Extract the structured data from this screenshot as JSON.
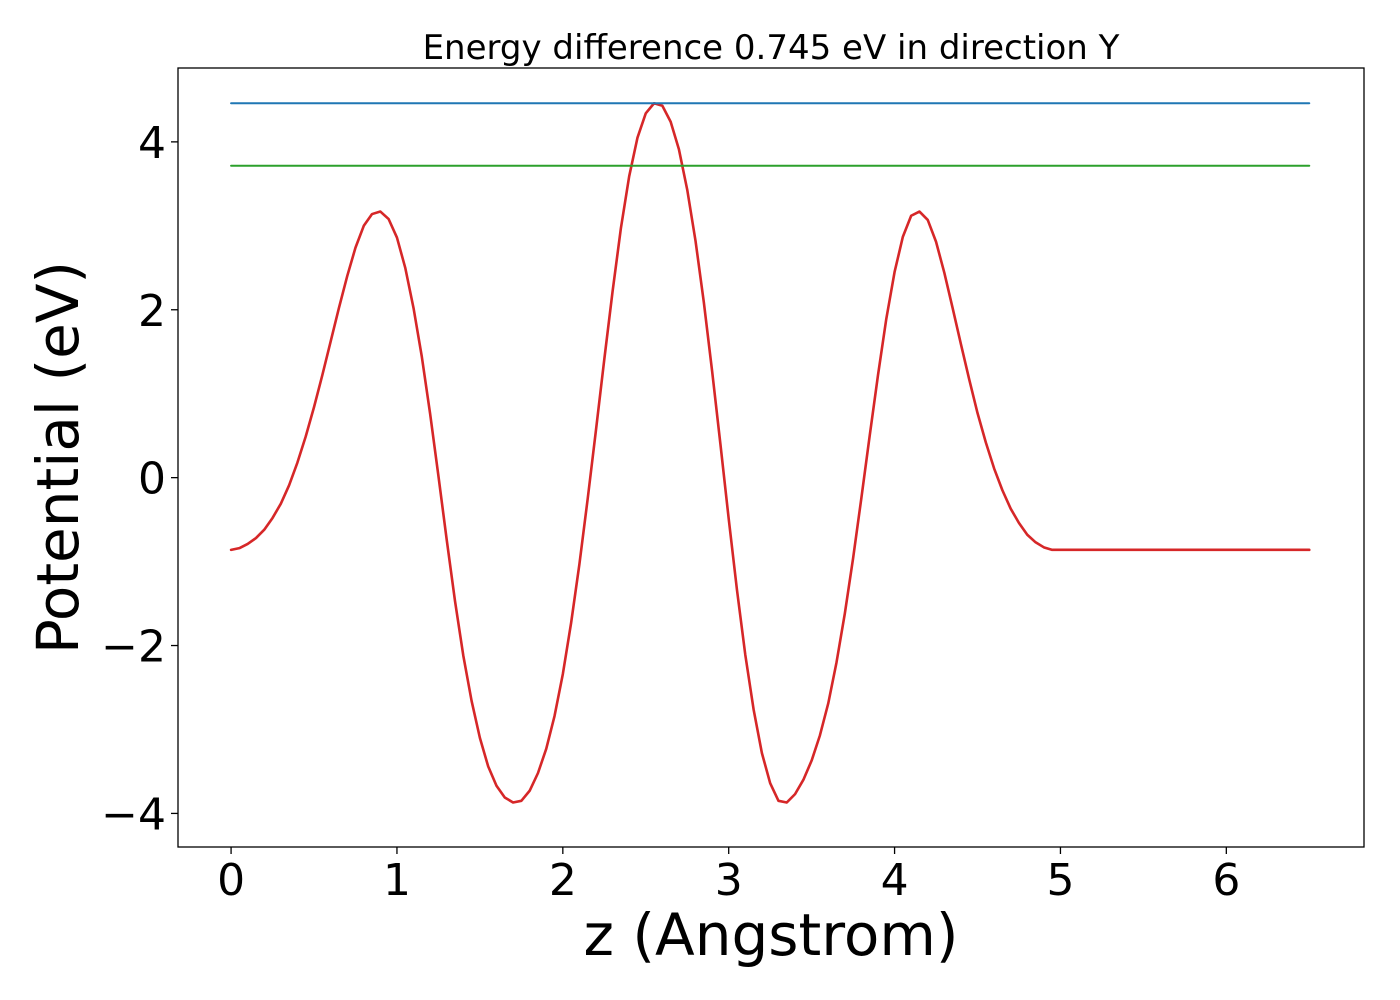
{
  "chart_data": {
    "type": "line",
    "title": "Energy difference 0.745 eV in direction Y",
    "xlabel": "z (Angstrom)",
    "ylabel": "Potential (eV)",
    "xlim": [
      -0.32,
      6.83
    ],
    "ylim": [
      -4.4,
      4.88
    ],
    "x_ticks": [
      0,
      1,
      2,
      3,
      4,
      5,
      6
    ],
    "x_tick_labels": [
      "0",
      "1",
      "2",
      "3",
      "4",
      "5",
      "6"
    ],
    "y_ticks": [
      -4,
      -2,
      0,
      2,
      4
    ],
    "y_tick_labels": [
      "−4",
      "−2",
      "0",
      "2",
      "4"
    ],
    "grid": false,
    "legend": "none",
    "series": [
      {
        "color": "#d62728",
        "kind": "curve",
        "x": [
          0,
          0.05,
          0.1,
          0.15,
          0.2,
          0.25,
          0.3,
          0.35,
          0.4,
          0.45,
          0.5,
          0.55,
          0.6,
          0.65,
          0.7,
          0.75,
          0.8,
          0.85,
          0.9,
          0.95,
          1.0,
          1.05,
          1.1,
          1.15,
          1.2,
          1.25,
          1.3,
          1.35,
          1.4,
          1.45,
          1.5,
          1.55,
          1.6,
          1.65,
          1.7,
          1.75,
          1.8,
          1.85,
          1.9,
          1.95,
          2.0,
          2.05,
          2.1,
          2.15,
          2.2,
          2.25,
          2.3,
          2.35,
          2.4,
          2.45,
          2.5,
          2.55,
          2.6,
          2.65,
          2.7,
          2.75,
          2.8,
          2.85,
          2.9,
          2.95,
          3.0,
          3.05,
          3.1,
          3.15,
          3.2,
          3.25,
          3.3,
          3.35,
          3.4,
          3.45,
          3.5,
          3.55,
          3.6,
          3.65,
          3.7,
          3.75,
          3.8,
          3.85,
          3.9,
          3.95,
          4.0,
          4.05,
          4.1,
          4.15,
          4.2,
          4.25,
          4.3,
          4.35,
          4.4,
          4.45,
          4.5,
          4.55,
          4.6,
          4.65,
          4.7,
          4.75,
          4.8,
          4.85,
          4.9,
          4.95,
          5.0,
          5.05,
          5.1,
          5.15,
          5.2,
          5.25,
          5.3,
          5.35,
          5.4,
          5.45,
          5.5,
          5.55,
          5.6,
          5.65,
          5.7,
          5.75,
          5.8,
          5.85,
          5.9,
          5.95,
          6.0,
          6.05,
          6.1,
          6.15,
          6.2,
          6.25,
          6.3,
          6.35,
          6.4,
          6.45,
          6.5
        ],
        "y": [
          -0.86,
          -0.84,
          -0.79,
          -0.72,
          -0.62,
          -0.48,
          -0.31,
          -0.09,
          0.18,
          0.49,
          0.84,
          1.22,
          1.62,
          2.02,
          2.4,
          2.74,
          3.0,
          3.14,
          3.17,
          3.08,
          2.86,
          2.5,
          2.02,
          1.44,
          0.76,
          0.02,
          -0.74,
          -1.47,
          -2.12,
          -2.66,
          -3.1,
          -3.44,
          -3.67,
          -3.81,
          -3.87,
          -3.85,
          -3.73,
          -3.52,
          -3.23,
          -2.84,
          -2.34,
          -1.73,
          -1.03,
          -0.25,
          0.57,
          1.41,
          2.22,
          2.97,
          3.59,
          4.05,
          4.34,
          4.46,
          4.43,
          4.24,
          3.91,
          3.43,
          2.82,
          2.09,
          1.27,
          0.4,
          -0.49,
          -1.34,
          -2.11,
          -2.76,
          -3.28,
          -3.64,
          -3.85,
          -3.87,
          -3.77,
          -3.6,
          -3.37,
          -3.07,
          -2.69,
          -2.2,
          -1.62,
          -0.96,
          -0.24,
          0.5,
          1.22,
          1.89,
          2.45,
          2.87,
          3.12,
          3.17,
          3.07,
          2.81,
          2.44,
          2.02,
          1.59,
          1.17,
          0.77,
          0.42,
          0.11,
          -0.15,
          -0.37,
          -0.54,
          -0.68,
          -0.77,
          -0.83,
          -0.86,
          -0.86,
          -0.86,
          -0.86,
          -0.86,
          -0.86,
          -0.86,
          -0.86,
          -0.86,
          -0.86,
          -0.86,
          -0.86,
          -0.86,
          -0.86,
          -0.86,
          -0.86,
          -0.86,
          -0.86,
          -0.86,
          -0.86,
          -0.86,
          -0.86,
          -0.86,
          -0.86,
          -0.86,
          -0.86,
          -0.86,
          -0.86,
          -0.86,
          -0.86,
          -0.86,
          -0.86
        ]
      },
      {
        "color": "#1f77b4",
        "kind": "hline",
        "x": [
          0,
          6.5
        ],
        "y": [
          4.46,
          4.46
        ]
      },
      {
        "color": "#2ca02c",
        "kind": "hline",
        "x": [
          0,
          6.5
        ],
        "y": [
          3.715,
          3.715
        ]
      }
    ]
  }
}
